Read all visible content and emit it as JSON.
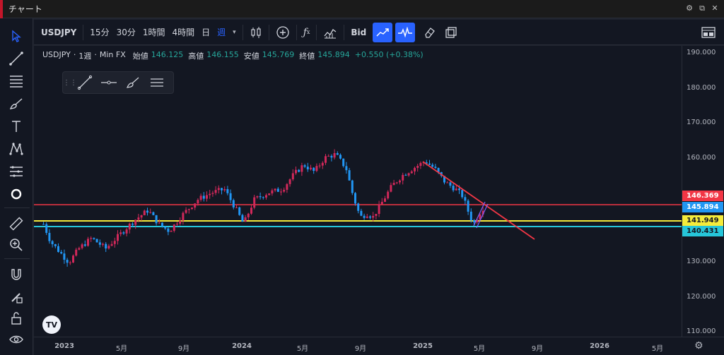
{
  "window": {
    "title": "チャート"
  },
  "toolbar": {
    "symbol": "USDJPY",
    "timeframes": [
      "15分",
      "30分",
      "1時間",
      "4時間",
      "日",
      "週"
    ],
    "active_timeframe": "週",
    "bid_label": "Bid"
  },
  "legend": {
    "symbol": "USDJPY",
    "interval": "1週",
    "source": "Min FX",
    "open_label": "始値",
    "open": "146.125",
    "high_label": "高値",
    "high": "146.155",
    "low_label": "安値",
    "low": "145.769",
    "close_label": "終値",
    "close": "145.894",
    "change": "+0.550 (+0.38%)"
  },
  "logo_text": "TV",
  "price_axis": {
    "labels": [
      "190.000",
      "180.000",
      "170.000",
      "160.000",
      "130.000",
      "120.000",
      "110.000"
    ],
    "badges": [
      {
        "text": "146.369",
        "bg": "#f23645",
        "fg": "#ffffff"
      },
      {
        "text": "145.894",
        "bg": "#2196f3",
        "fg": "#ffffff"
      },
      {
        "text": "141.949",
        "bg": "#f5eb3b",
        "fg": "#131722"
      },
      {
        "text": "140.431",
        "bg": "#26c6da",
        "fg": "#131722"
      }
    ]
  },
  "time_axis": {
    "labels": [
      "2023",
      "5月",
      "9月",
      "2024",
      "5月",
      "9月",
      "2025",
      "5月",
      "9月",
      "2026",
      "5月"
    ]
  },
  "colors": {
    "up": "#d1285a",
    "down": "#2196f3",
    "red_line": "#f23645",
    "yellow_line": "#f5eb3b",
    "cyan_line": "#26c6da"
  }
}
